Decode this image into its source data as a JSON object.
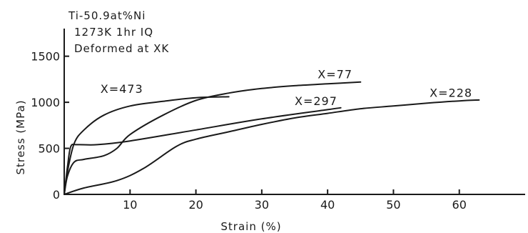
{
  "chart_data": {
    "type": "line",
    "title": "",
    "annotations": [
      "Ti-50.9at%Ni",
      "1273K 1hr IQ",
      "Deformed at XK"
    ],
    "xlabel": "Strain (%)",
    "ylabel": "Stress (MPa)",
    "xlim": [
      0,
      70
    ],
    "ylim": [
      0,
      1800
    ],
    "xticks": [
      "10",
      "20",
      "30",
      "40",
      "50",
      "60"
    ],
    "yticks": [
      "0",
      "500",
      "1000",
      "1500"
    ],
    "grid": false,
    "series": [
      {
        "name": "X=473",
        "x": [
          0,
          0.5,
          1.5,
          3,
          6,
          10,
          15,
          20,
          25
        ],
        "y": [
          0,
          250,
          550,
          700,
          860,
          960,
          1010,
          1050,
          1060
        ]
      },
      {
        "name": "X=77",
        "x": [
          0,
          0.5,
          1.5,
          3,
          6,
          8,
          10,
          15,
          20,
          25,
          30,
          35,
          40,
          45
        ],
        "y": [
          0,
          200,
          350,
          380,
          420,
          500,
          650,
          860,
          1020,
          1100,
          1150,
          1180,
          1200,
          1220
        ]
      },
      {
        "name": "X=297",
        "x": [
          0,
          0.5,
          1,
          2,
          5,
          10,
          20,
          30,
          40,
          42
        ],
        "y": [
          0,
          300,
          520,
          540,
          540,
          580,
          700,
          820,
          920,
          940
        ]
      },
      {
        "name": "X=228",
        "x": [
          0,
          3,
          8,
          12,
          17,
          20,
          25,
          30,
          35,
          40,
          45,
          50,
          55,
          60,
          63
        ],
        "y": [
          0,
          70,
          150,
          280,
          520,
          600,
          680,
          760,
          830,
          880,
          930,
          960,
          990,
          1015,
          1025
        ]
      }
    ]
  }
}
